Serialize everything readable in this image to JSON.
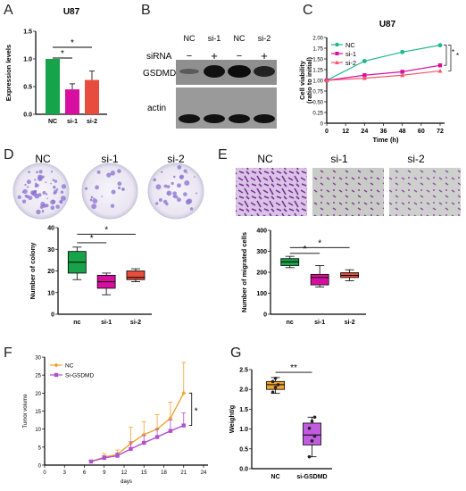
{
  "panel_labels": [
    "A",
    "B",
    "C",
    "D",
    "E",
    "F",
    "G"
  ],
  "colors": {
    "green": "#16a34a",
    "magenta": "#d70fa0",
    "red": "#e74c3c",
    "teal": "#1fb68a",
    "purple": "#b04fd0",
    "orange": "#f2a230",
    "pink": "#f05a6e",
    "stain": "#8a6fd0"
  },
  "chart_data": [
    {
      "panel": "A",
      "type": "bar",
      "title": "U87",
      "ylabel": "Expression levels",
      "categories": [
        "NC",
        "si-1",
        "si-2"
      ],
      "values": [
        1.0,
        0.45,
        0.62
      ],
      "errors": [
        0,
        0.1,
        0.16
      ],
      "ylim": [
        0,
        1.5
      ],
      "yticks": [
        "0.0",
        "0.5",
        "1.0",
        "1.5"
      ],
      "significance": [
        "*",
        "*"
      ],
      "colors": [
        "#16a34a",
        "#d70fa0",
        "#e74c3c"
      ]
    },
    {
      "panel": "C",
      "type": "line",
      "title": "U87",
      "xlabel": "Time (h)",
      "ylabel": "Cell viability (ratio to initial)",
      "x": [
        0,
        24,
        48,
        72
      ],
      "xticks": [
        "0",
        "12",
        "24",
        "36",
        "48",
        "60",
        "72"
      ],
      "ylim": [
        0,
        2.0
      ],
      "yticks": [
        "0",
        "0.25",
        "0.50",
        "0.75",
        "1.00",
        "1.25",
        "1.50",
        "1.75",
        "2.00"
      ],
      "series": [
        {
          "name": "NC",
          "values": [
            1.0,
            1.45,
            1.66,
            1.82
          ],
          "color": "#1fb68a",
          "marker": "circle"
        },
        {
          "name": "si-1",
          "values": [
            1.0,
            1.12,
            1.2,
            1.35
          ],
          "color": "#d70fa0",
          "marker": "square"
        },
        {
          "name": "si-2",
          "values": [
            1.0,
            1.05,
            1.12,
            1.22
          ],
          "color": "#f05a6e",
          "marker": "triangle"
        }
      ],
      "legend": "top-left",
      "significance": [
        "*",
        "*"
      ]
    },
    {
      "panel": "D",
      "type": "box",
      "ylabel": "Number of colony",
      "categories": [
        "nc",
        "si-1",
        "si-2"
      ],
      "boxes": [
        {
          "min": 16,
          "q1": 19,
          "median": 24,
          "q3": 29,
          "max": 31,
          "color": "#16a34a"
        },
        {
          "min": 9,
          "q1": 12,
          "median": 15,
          "q3": 18,
          "max": 19,
          "color": "#d70fa0"
        },
        {
          "min": 15,
          "q1": 16,
          "median": 17,
          "q3": 20,
          "max": 21,
          "color": "#e74c3c"
        }
      ],
      "ylim": [
        0,
        40
      ],
      "yticks": [
        "0",
        "10",
        "20",
        "30",
        "40"
      ],
      "significance": [
        "*",
        "*"
      ]
    },
    {
      "panel": "E",
      "type": "box",
      "ylabel": "Number of migrated cells",
      "categories": [
        "nc",
        "si-1",
        "si-2"
      ],
      "boxes": [
        {
          "min": 222,
          "q1": 232,
          "median": 250,
          "q3": 265,
          "max": 276,
          "color": "#16a34a"
        },
        {
          "min": 130,
          "q1": 140,
          "median": 175,
          "q3": 190,
          "max": 232,
          "color": "#d70fa0"
        },
        {
          "min": 160,
          "q1": 175,
          "median": 185,
          "q3": 198,
          "max": 212,
          "color": "#e74c3c"
        }
      ],
      "ylim": [
        0,
        400
      ],
      "yticks": [
        "0",
        "100",
        "200",
        "300",
        "400"
      ],
      "significance": [
        "*",
        "*"
      ]
    },
    {
      "panel": "F",
      "type": "line",
      "xlabel": "days",
      "ylabel": "Tumor volume",
      "x": [
        7,
        9,
        11,
        13,
        15,
        17,
        19,
        21
      ],
      "xticks": [
        "0",
        "3",
        "6",
        "9",
        "12",
        "15",
        "18",
        "21",
        "24"
      ],
      "ylim": [
        0,
        30
      ],
      "yticks": [
        "0",
        "5",
        "10",
        "15",
        "20",
        "25",
        "30"
      ],
      "series": [
        {
          "name": "NC",
          "values": [
            1.0,
            2.2,
            3.0,
            6.0,
            8.5,
            10.0,
            13.0,
            20.0
          ],
          "errors": [
            0.4,
            1.0,
            1.2,
            4.5,
            3.5,
            4.0,
            4.5,
            8.5
          ],
          "color": "#f2a230"
        },
        {
          "name": "Si-GSDMD",
          "values": [
            1.0,
            2.0,
            2.6,
            4.5,
            6.2,
            7.8,
            9.5,
            11.0
          ],
          "errors": [
            0.3,
            0.6,
            0.8,
            2.0,
            2.0,
            2.2,
            3.0,
            3.5
          ],
          "color": "#b04fd0"
        }
      ],
      "legend": "top-left",
      "significance": [
        "*"
      ]
    },
    {
      "panel": "G",
      "type": "box",
      "ylabel": "Weight/g",
      "categories": [
        "NC",
        "si-GSDMD"
      ],
      "boxes": [
        {
          "min": 1.9,
          "q1": 2.0,
          "median": 2.12,
          "q3": 2.2,
          "max": 2.3,
          "color": "#f2a230",
          "points": [
            1.93,
            2.05,
            2.12,
            2.2,
            2.28
          ]
        },
        {
          "min": 0.3,
          "q1": 0.6,
          "median": 0.85,
          "q3": 1.15,
          "max": 1.3,
          "color": "#c15be0",
          "points": [
            0.3,
            0.7,
            0.82,
            1.02,
            1.2,
            1.3
          ]
        }
      ],
      "ylim": [
        0,
        2.5
      ],
      "yticks": [
        "0.0",
        "0.5",
        "1.0",
        "1.5",
        "2.0",
        "2.5"
      ],
      "significance": [
        "**"
      ]
    }
  ],
  "blot": {
    "header": [
      "NC",
      "si-1",
      "NC",
      "si-2"
    ],
    "sirna_label": "siRNA",
    "sirna_marks": [
      "−",
      "+",
      "−",
      "+"
    ],
    "bands": [
      "GSDMD",
      "actin"
    ]
  },
  "colony_labels": [
    "NC",
    "si-1",
    "si-2"
  ],
  "migration_labels": [
    "NC",
    "si-1",
    "si-2"
  ]
}
